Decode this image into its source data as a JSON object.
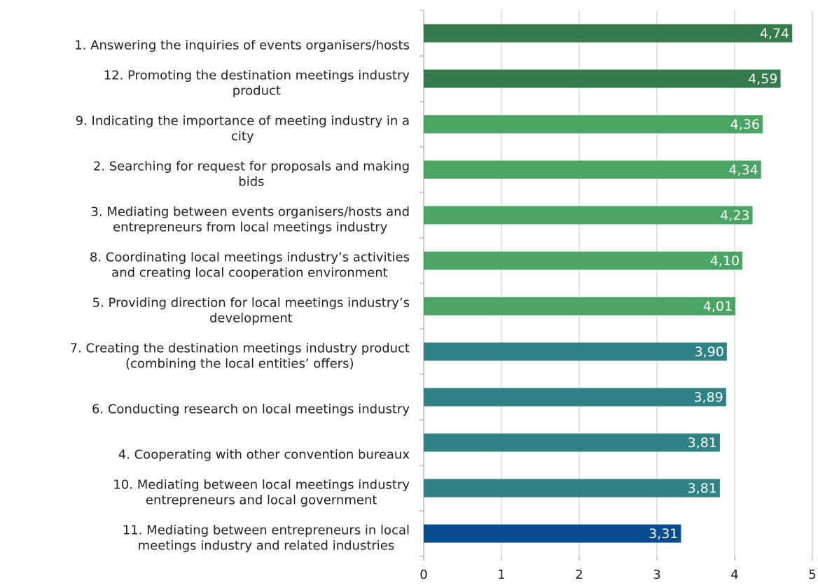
{
  "chart_data": {
    "type": "barh",
    "categories": [
      [
        "1. Answering the inquiries of events organisers/hosts"
      ],
      [
        "12. Promoting the destination meetings industry",
        "product"
      ],
      [
        "9. Indicating the importance of meeting industry in a",
        "city"
      ],
      [
        "2. Searching for request for proposals and making",
        "bids"
      ],
      [
        "3. Mediating between events organisers/hosts and",
        "entrepreneurs from local meetings industry"
      ],
      [
        "8. Coordinating local meetings industry’s activities",
        "and creating local cooperation environment"
      ],
      [
        "5. Providing direction for local meetings industry’s",
        "development"
      ],
      [
        "7. Creating the destination meetings industry product",
        "(combining the local entities’ offers)"
      ],
      [
        "6. Conducting research on local meetings industry"
      ],
      [
        "4. Cooperating with other convention bureaux"
      ],
      [
        "10. Mediating between local meetings industry",
        "entrepreneurs and local government"
      ],
      [
        "11. Mediating between entrepreneurs in local",
        "meetings industry and related industries"
      ]
    ],
    "values": [
      4.74,
      4.59,
      4.36,
      4.34,
      4.23,
      4.1,
      4.01,
      3.9,
      3.89,
      3.81,
      3.81,
      3.31
    ],
    "value_labels": [
      "4,74",
      "4,59",
      "4,36",
      "4,34",
      "4,23",
      "4,10",
      "4,01",
      "3,90",
      "3,89",
      "3,81",
      "3,81",
      "3,31"
    ],
    "colors": [
      "#357a4a",
      "#357a4a",
      "#4aa564",
      "#4aa564",
      "#4aa564",
      "#4aa564",
      "#4aa564",
      "#2e8285",
      "#2e8285",
      "#2e8285",
      "#2e8285",
      "#074c8e"
    ],
    "xlim": [
      0,
      5
    ],
    "xticks": [
      0,
      1,
      2,
      3,
      4,
      5
    ],
    "grid": true
  }
}
